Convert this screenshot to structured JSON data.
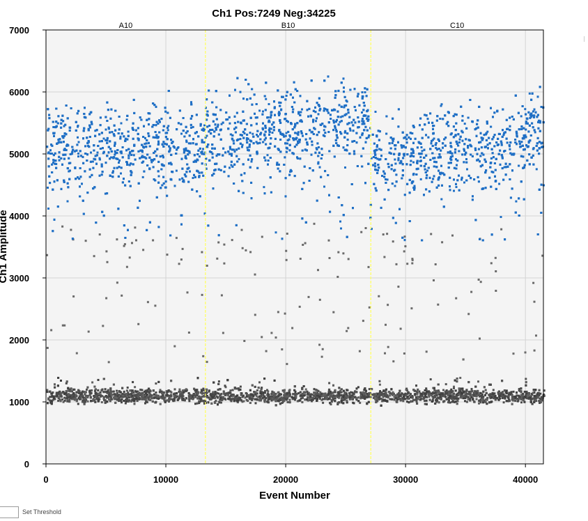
{
  "chart_data": {
    "type": "scatter",
    "title": "Ch1 Pos:7249 Neg:34225",
    "xlabel": "Event Number",
    "ylabel": "Ch1 Amplitude",
    "xlim": [
      0,
      41500
    ],
    "ylim": [
      0,
      7000
    ],
    "x_ticks": [
      "0",
      "10000",
      "20000",
      "30000",
      "40000"
    ],
    "x_tick_values": [
      0,
      10000,
      20000,
      30000,
      40000
    ],
    "y_ticks": [
      "0",
      "1000",
      "2000",
      "3000",
      "4000",
      "5000",
      "6000",
      "7000"
    ],
    "y_tick_values": [
      0,
      1000,
      2000,
      3000,
      4000,
      5000,
      6000,
      7000
    ],
    "grid": true,
    "well_boundaries": [
      13300,
      27100
    ],
    "wells": [
      {
        "label": "A10",
        "center": 6650
      },
      {
        "label": "B10",
        "center": 20200
      },
      {
        "label": "C10",
        "center": 34300
      }
    ],
    "series": [
      {
        "count": 7249,
        "color": "#1f6fc5",
        "band": [
          3600,
          6300
        ],
        "center": 5150
      },
      {
        "count": 34225,
        "color": "#505050",
        "band": [
          850,
          1500
        ],
        "center": 1100
      }
    ],
    "colors": {
      "positive": "#1f6fc5",
      "negative": "#505050",
      "rain": "#6a6a6a",
      "boundary": "#ffff66",
      "plot_background": "#f4f4f4",
      "grid": "#d4d4d4"
    }
  },
  "controls": {
    "threshold_label": "Set Threshold"
  }
}
